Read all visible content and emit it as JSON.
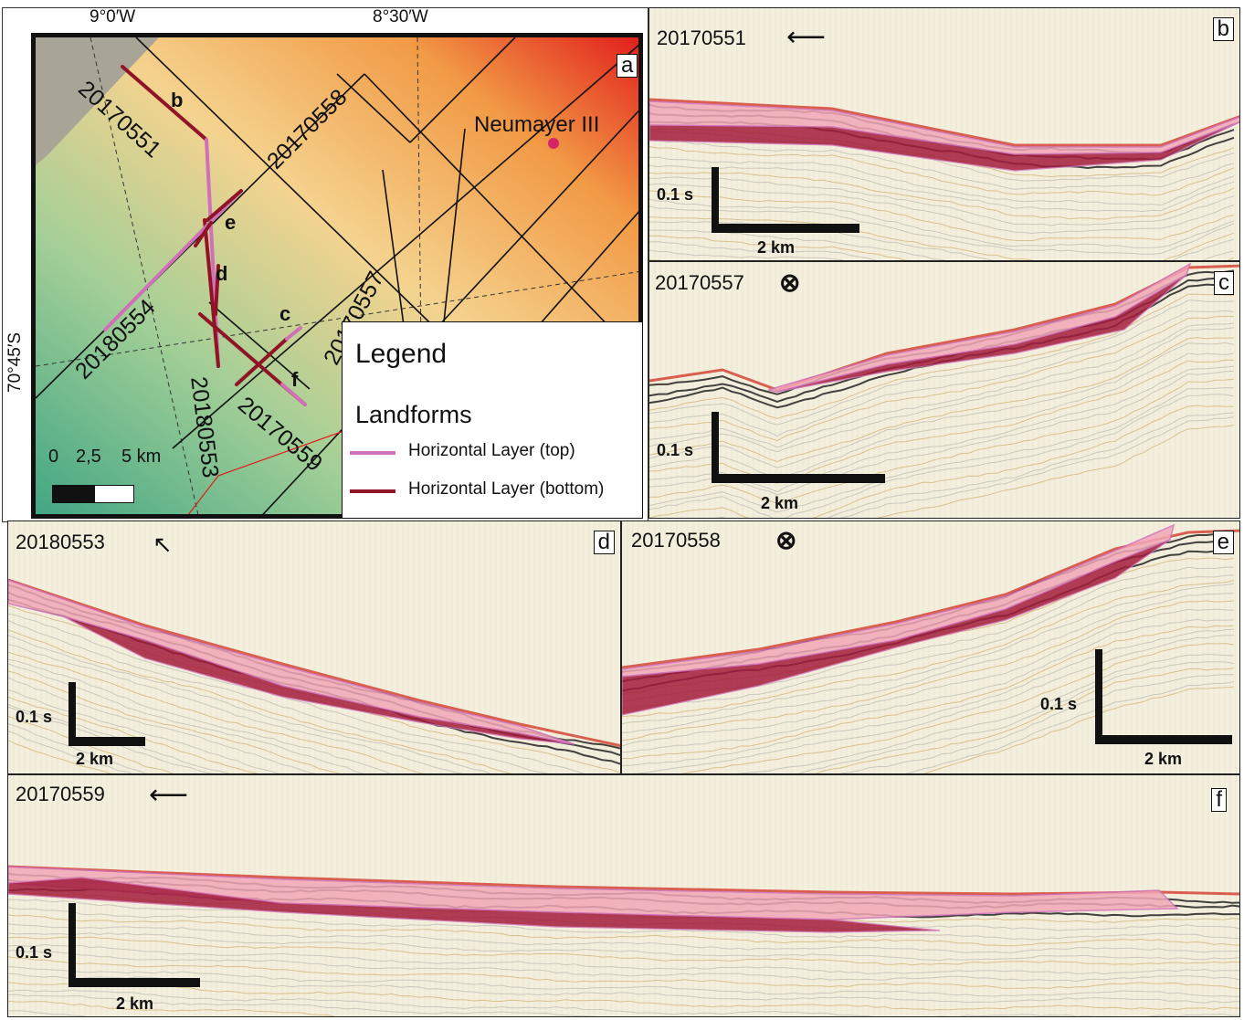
{
  "map": {
    "panel_letter": "a",
    "top_coords": [
      "9°0′W",
      "8°30′W"
    ],
    "left_coord": "70°45′S",
    "station": "Neumayer III",
    "profiles": [
      "20170551",
      "20170558",
      "20180554",
      "20170557",
      "20180553",
      "20170559"
    ],
    "letters": [
      "b",
      "e",
      "d",
      "c",
      "f"
    ],
    "scalebar": {
      "labels": [
        "0",
        "2,5",
        "5 km"
      ]
    },
    "legend": {
      "title": "Legend",
      "subtitle": "Landforms",
      "items": [
        {
          "label": "Horizontal Layer (top)",
          "color": "#d070b8"
        },
        {
          "label": "Horizontal Layer (bottom)",
          "color": "#8e1426"
        }
      ]
    }
  },
  "panels": [
    {
      "id": "b",
      "profile": "20170551",
      "direction": "arrow-left-icon",
      "time_label": "0.1 s",
      "dist_label": "2 km"
    },
    {
      "id": "c",
      "profile": "20170557",
      "direction": "cross-circle-icon",
      "time_label": "0.1 s",
      "dist_label": "2 km"
    },
    {
      "id": "d",
      "profile": "20180553",
      "direction": "arrow-up-left-icon",
      "time_label": "0.1 s",
      "dist_label": "2 km"
    },
    {
      "id": "e",
      "profile": "20170558",
      "direction": "cross-circle-icon",
      "time_label": "0.1 s",
      "dist_label": "2 km"
    },
    {
      "id": "f",
      "profile": "20170559",
      "direction": "arrow-left-icon",
      "time_label": "0.1 s",
      "dist_label": "2 km"
    }
  ],
  "colors": {
    "layer_top": "#d070b8",
    "layer_bottom": "#8e1426",
    "fill_top": "#f2a8b8",
    "fill_bottom": "#a31d3c"
  }
}
